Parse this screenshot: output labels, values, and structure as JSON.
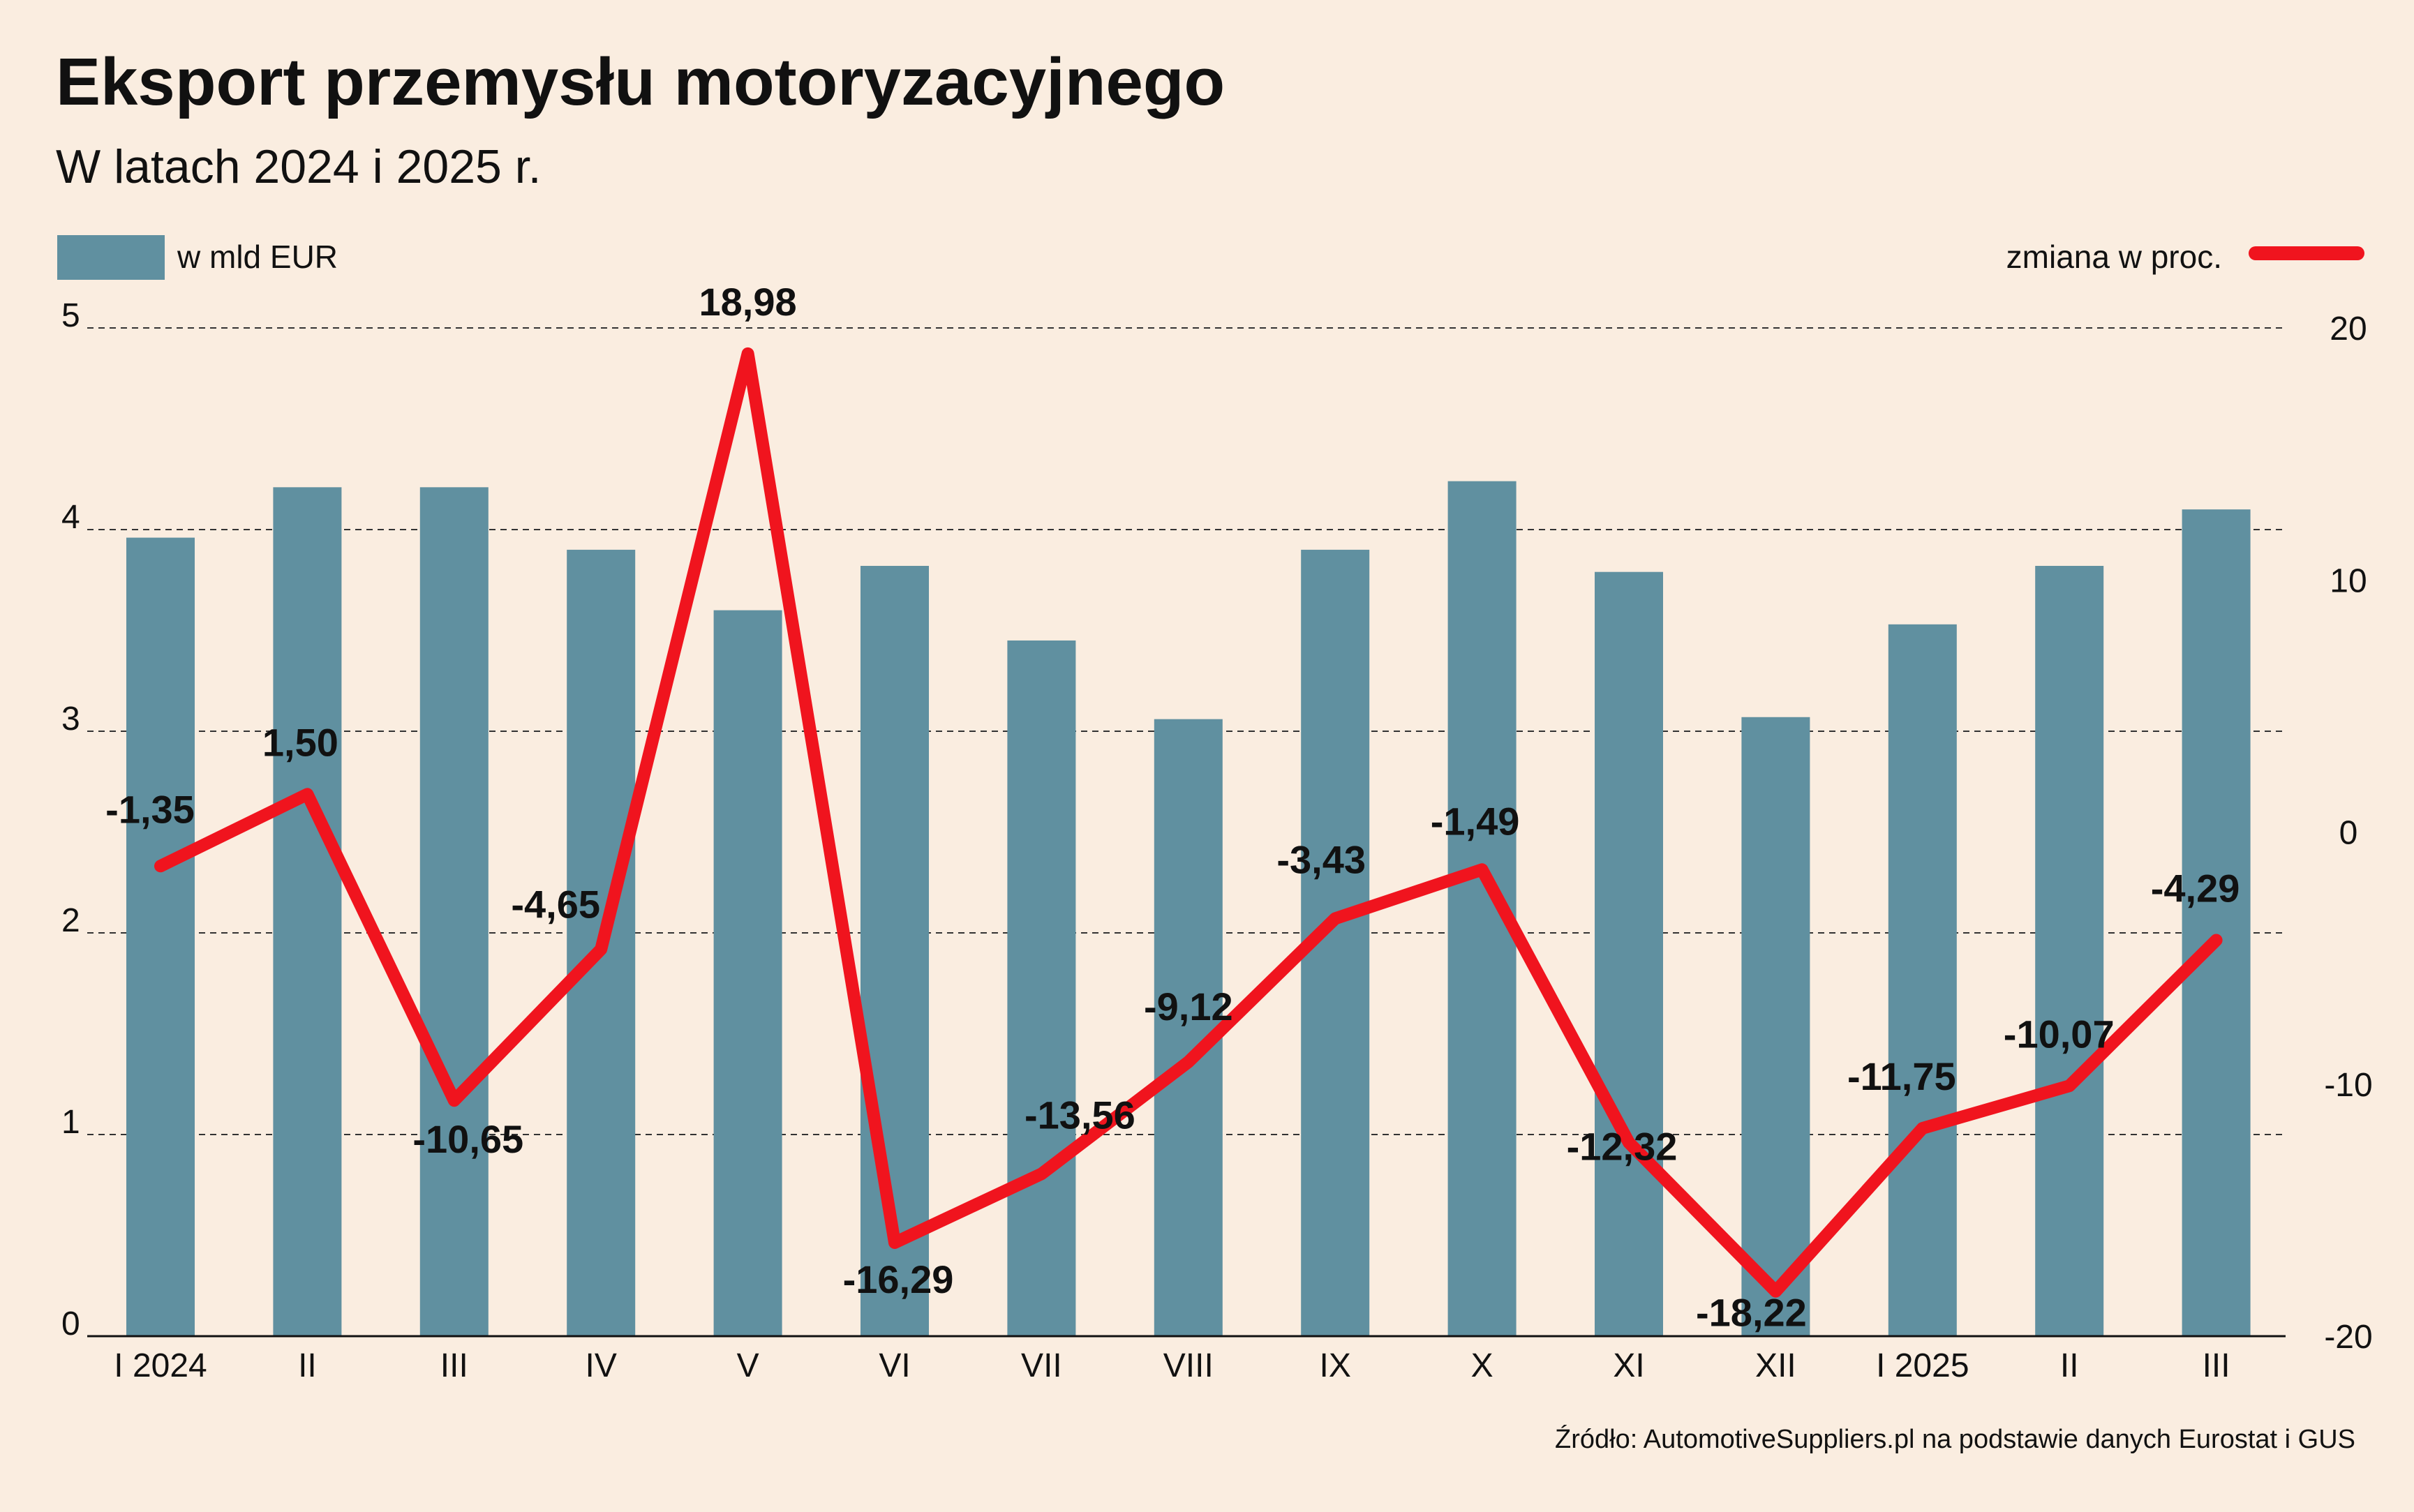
{
  "chart_data": {
    "type": "bar+line",
    "title": "Eksport przemysłu motoryzacyjnego",
    "subtitle": "W latach 2024 i 2025 r.",
    "categories": [
      "I 2024",
      "II",
      "III",
      "IV",
      "V",
      "VI",
      "VII",
      "VIII",
      "IX",
      "X",
      "XI",
      "XII",
      "I 2025",
      "II",
      "III"
    ],
    "bars": {
      "name": "w mld EUR",
      "axis": "left",
      "color": "#6090a0",
      "values": [
        3.96,
        4.21,
        4.21,
        3.9,
        3.6,
        3.82,
        3.45,
        3.06,
        3.9,
        4.24,
        3.79,
        3.07,
        3.53,
        3.82,
        4.1
      ]
    },
    "line": {
      "name": "zmiana w proc.",
      "axis": "right",
      "color": "#f0141e",
      "values": [
        -1.35,
        1.5,
        -10.65,
        -4.65,
        18.98,
        -16.29,
        -13.56,
        -9.12,
        -3.43,
        -1.49,
        -12.32,
        -18.22,
        -11.75,
        -10.07,
        -4.29
      ],
      "labels": [
        "-1,35",
        "1,50",
        "-10,65",
        "-4,65",
        "18,98",
        "-16,29",
        "-13,56",
        "-9,12",
        "-3,43",
        "-1,49",
        "-12,32",
        "-18,22",
        "-11,75",
        "-10,07",
        "-4,29"
      ]
    },
    "left_axis": {
      "ylim": [
        0,
        5
      ],
      "ticks": [
        "0",
        "1",
        "2",
        "3",
        "4",
        "5"
      ]
    },
    "right_axis": {
      "ylim": [
        -20,
        20
      ],
      "ticks": [
        "-20",
        "-10",
        "0",
        "10",
        "20"
      ]
    },
    "grid": true,
    "legend": {
      "bars_position": "top-left",
      "line_position": "top-right"
    },
    "source": "Źródło: AutomotiveSuppliers.pl na podstawie danych Eurostat i GUS"
  }
}
